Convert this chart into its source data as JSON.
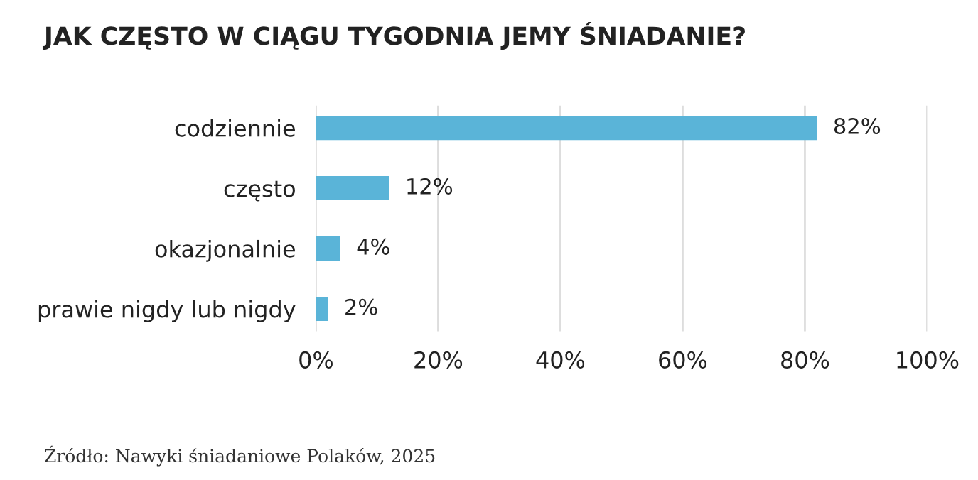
{
  "chart_data": {
    "type": "bar",
    "orientation": "horizontal",
    "title": "JAK CZĘSTO W CIĄGU TYGODNIA JEMY ŚNIADANIE?",
    "categories": [
      "codziennie",
      "często",
      "okazjonalnie",
      "prawie nigdy lub nigdy"
    ],
    "values": [
      82,
      12,
      4,
      2
    ],
    "color": "#5ab4d8",
    "value_labels": [
      "82%",
      "12%",
      "4%",
      "2%"
    ],
    "xlim": [
      0,
      100
    ],
    "xticks": [
      {
        "value": 0,
        "label": "0%"
      },
      {
        "value": 20,
        "label": "20%"
      },
      {
        "value": 40,
        "label": "40%"
      },
      {
        "value": 60,
        "label": "60%"
      },
      {
        "value": 80,
        "label": "80%"
      },
      {
        "value": 100,
        "label": "100%"
      }
    ],
    "grid": "x",
    "annotations": [
      "Źródło: Nawyki śniadaniowe Polaków, 2025"
    ]
  }
}
